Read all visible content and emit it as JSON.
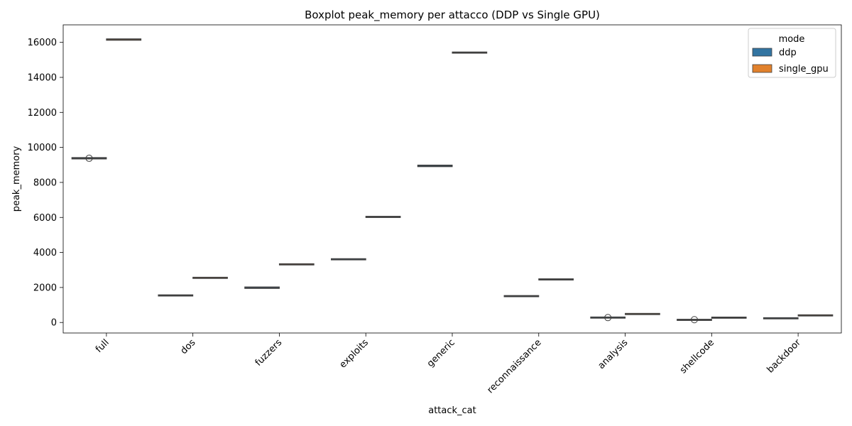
{
  "chart_data": {
    "type": "boxplot",
    "title": "Boxplot peak_memory per attacco (DDP vs Single GPU)",
    "xlabel": "attack_cat",
    "ylabel": "peak_memory",
    "ylim": [
      -600,
      17000
    ],
    "yticks": [
      0,
      2000,
      4000,
      6000,
      8000,
      10000,
      12000,
      14000,
      16000
    ],
    "grid": false,
    "legend": {
      "title": "mode",
      "placement": "top-right",
      "entries": [
        {
          "name": "ddp",
          "color": "#3274a1"
        },
        {
          "name": "single_gpu",
          "color": "#e1812c"
        }
      ]
    },
    "categories": [
      "full",
      "dos",
      "fuzzers",
      "exploits",
      "generic",
      "reconnaissance",
      "analysis",
      "shellcode",
      "backdoor"
    ],
    "series": [
      {
        "name": "ddp",
        "color": "#3274a1",
        "boxes": [
          {
            "q1": 9370,
            "median": 9380,
            "q3": 9390,
            "whislo": 9370,
            "whishi": 9390,
            "fliers": [
              9380
            ]
          },
          {
            "q1": 1540,
            "median": 1545,
            "q3": 1550,
            "whislo": 1540,
            "whishi": 1550,
            "fliers": []
          },
          {
            "q1": 1975,
            "median": 1985,
            "q3": 2000,
            "whislo": 1975,
            "whishi": 2000,
            "fliers": []
          },
          {
            "q1": 3605,
            "median": 3610,
            "q3": 3615,
            "whislo": 3605,
            "whishi": 3615,
            "fliers": []
          },
          {
            "q1": 8930,
            "median": 8940,
            "q3": 8960,
            "whislo": 8930,
            "whishi": 8960,
            "fliers": []
          },
          {
            "q1": 1500,
            "median": 1505,
            "q3": 1510,
            "whislo": 1500,
            "whishi": 1510,
            "fliers": []
          },
          {
            "q1": 275,
            "median": 280,
            "q3": 285,
            "whislo": 275,
            "whishi": 285,
            "fliers": [
              280
            ]
          },
          {
            "q1": 145,
            "median": 150,
            "q3": 155,
            "whislo": 145,
            "whishi": 155,
            "fliers": [
              160
            ]
          },
          {
            "q1": 235,
            "median": 240,
            "q3": 245,
            "whislo": 235,
            "whishi": 245,
            "fliers": []
          }
        ]
      },
      {
        "name": "single_gpu",
        "color": "#e1812c",
        "boxes": [
          {
            "q1": 16150,
            "median": 16160,
            "q3": 16170,
            "whislo": 16150,
            "whishi": 16170,
            "fliers": []
          },
          {
            "q1": 2545,
            "median": 2550,
            "q3": 2555,
            "whislo": 2545,
            "whishi": 2555,
            "fliers": []
          },
          {
            "q1": 3315,
            "median": 3320,
            "q3": 3325,
            "whislo": 3315,
            "whishi": 3325,
            "fliers": []
          },
          {
            "q1": 6025,
            "median": 6030,
            "q3": 6035,
            "whislo": 6025,
            "whishi": 6035,
            "fliers": []
          },
          {
            "q1": 15410,
            "median": 15415,
            "q3": 15420,
            "whislo": 15410,
            "whishi": 15420,
            "fliers": []
          },
          {
            "q1": 2455,
            "median": 2460,
            "q3": 2465,
            "whislo": 2455,
            "whishi": 2465,
            "fliers": []
          },
          {
            "q1": 480,
            "median": 485,
            "q3": 490,
            "whislo": 480,
            "whishi": 490,
            "fliers": []
          },
          {
            "q1": 270,
            "median": 275,
            "q3": 280,
            "whislo": 270,
            "whishi": 280,
            "fliers": []
          },
          {
            "q1": 400,
            "median": 405,
            "q3": 410,
            "whislo": 400,
            "whishi": 410,
            "fliers": []
          }
        ]
      }
    ]
  }
}
